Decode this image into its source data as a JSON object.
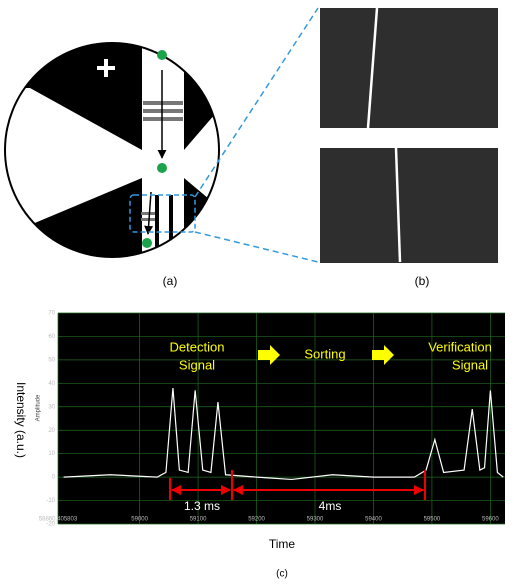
{
  "figure": {
    "panel_labels": [
      "(a)",
      "(b)",
      "(c)"
    ]
  },
  "chart_data": {
    "type": "line",
    "ylabel": "Intensity (a.u.)",
    "inner_ylabel": "Amplitude",
    "xlabel": "Time",
    "annotations": [
      "Detection",
      "Signal",
      "Sorting",
      "Verification",
      "Signal",
      "1.3 ms",
      "4ms"
    ],
    "x": [
      58870,
      58950,
      59030,
      59045,
      59057,
      59068,
      59083,
      59095,
      59108,
      59122,
      59134,
      59147,
      59200,
      59260,
      59330,
      59400,
      59470,
      59490,
      59505,
      59520,
      59555,
      59569,
      59582,
      59590,
      59600,
      59612,
      59622
    ],
    "series": [
      {
        "color": "#ffffff",
        "values": [
          0,
          1,
          0,
          2,
          38,
          3,
          2,
          37,
          3,
          2,
          32,
          1,
          0,
          -1,
          1,
          0,
          0,
          3,
          16,
          2,
          3,
          29,
          3,
          4,
          37,
          2,
          0
        ]
      }
    ],
    "xlim": [
      58860.405803,
      59625
    ],
    "xticks": [
      58860.405803,
      59000,
      59100,
      59200,
      59300,
      59400,
      59500,
      59600
    ],
    "ylim": [
      -20,
      70
    ],
    "yticks": [
      -20,
      -10,
      0,
      10,
      20,
      30,
      40,
      50,
      60,
      70
    ],
    "grid": true
  }
}
